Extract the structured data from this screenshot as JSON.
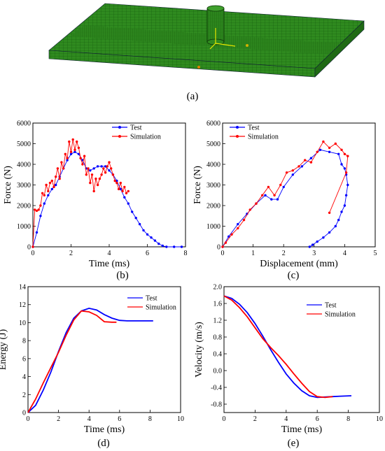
{
  "panels": [
    {
      "id": "a",
      "caption": "(a)"
    },
    {
      "id": "b",
      "caption": "(b)"
    },
    {
      "id": "c",
      "caption": "(c)"
    },
    {
      "id": "d",
      "caption": "(d)"
    },
    {
      "id": "e",
      "caption": "(e)"
    }
  ],
  "colors": {
    "test": "#0000ff",
    "simulation": "#ff0000",
    "mesh": "#2f8a1f"
  },
  "mesh_visual": {
    "kind": "finite-element plate mesh with cylindrical impactor",
    "icon": "fe-mesh-icon"
  },
  "chart_data": [
    {
      "panel": "b",
      "type": "line",
      "markers": true,
      "xlabel": "Time (ms)",
      "ylabel": "Force (N)",
      "xlim": [
        0,
        8
      ],
      "ylim": [
        0,
        6000
      ],
      "xticks": [
        0,
        2,
        4,
        6,
        8
      ],
      "yticks": [
        0,
        1000,
        2000,
        3000,
        4000,
        5000,
        6000
      ],
      "legend": "top-right",
      "series": [
        {
          "name": "Test",
          "color": "#0000ff",
          "x": [
            0,
            0.2,
            0.4,
            0.6,
            0.8,
            1.0,
            1.2,
            1.4,
            1.6,
            1.8,
            2.0,
            2.2,
            2.4,
            2.6,
            2.8,
            3.0,
            3.2,
            3.4,
            3.6,
            3.8,
            4.0,
            4.2,
            4.4,
            4.6,
            4.8,
            5.0,
            5.2,
            5.4,
            5.6,
            5.8,
            6.0,
            6.2,
            6.4,
            6.6,
            6.8,
            7.0,
            7.4,
            7.8
          ],
          "y": [
            0,
            700,
            1500,
            2100,
            2500,
            2800,
            3000,
            3400,
            3800,
            4200,
            4500,
            4600,
            4500,
            4200,
            3800,
            3700,
            3800,
            3900,
            3900,
            3900,
            3700,
            3500,
            3200,
            2800,
            2400,
            2100,
            1700,
            1400,
            1100,
            800,
            600,
            450,
            300,
            150,
            50,
            0,
            0,
            0
          ]
        },
        {
          "name": "Simulation",
          "color": "#ff0000",
          "x": [
            0,
            0.1,
            0.2,
            0.3,
            0.4,
            0.5,
            0.6,
            0.7,
            0.8,
            0.9,
            1.0,
            1.1,
            1.2,
            1.3,
            1.4,
            1.5,
            1.6,
            1.7,
            1.8,
            1.9,
            2.0,
            2.1,
            2.2,
            2.3,
            2.4,
            2.5,
            2.6,
            2.7,
            2.8,
            2.9,
            3.0,
            3.1,
            3.2,
            3.3,
            3.4,
            3.5,
            3.6,
            3.7,
            3.8,
            3.9,
            4.0,
            4.1,
            4.2,
            4.3,
            4.4,
            4.5,
            4.6,
            4.7,
            4.8,
            4.9,
            5.0
          ],
          "y": [
            0,
            1800,
            1750,
            1800,
            2000,
            2600,
            2500,
            3000,
            2700,
            3100,
            3200,
            2900,
            3400,
            3800,
            3300,
            4100,
            3800,
            4500,
            4300,
            5100,
            4600,
            5200,
            4700,
            5100,
            4800,
            4300,
            4000,
            4400,
            3500,
            3800,
            3100,
            3500,
            2700,
            3300,
            3000,
            3300,
            3500,
            3800,
            3600,
            3900,
            4100,
            3800,
            3500,
            3200,
            3100,
            2800,
            3100,
            2700,
            2900,
            2600,
            2700
          ]
        }
      ]
    },
    {
      "panel": "c",
      "type": "line",
      "markers": true,
      "xlabel": "Displacement (mm)",
      "ylabel": "Force (N)",
      "xlim": [
        0,
        5
      ],
      "ylim": [
        0,
        6000
      ],
      "xticks": [
        0,
        1,
        2,
        3,
        4,
        5
      ],
      "yticks": [
        0,
        1000,
        2000,
        3000,
        4000,
        5000,
        6000
      ],
      "legend": "top-center",
      "series": [
        {
          "name": "Test",
          "color": "#0000ff",
          "x": [
            0,
            0.2,
            0.5,
            0.8,
            1.1,
            1.4,
            1.6,
            1.8,
            2.0,
            2.3,
            2.6,
            2.9,
            3.2,
            3.5,
            3.8,
            3.9,
            4.0,
            4.05,
            4.1,
            4.05,
            4.0,
            3.9,
            3.8,
            3.7,
            3.5,
            3.3,
            3.1,
            2.95,
            2.85
          ],
          "y": [
            0,
            500,
            1100,
            1600,
            2100,
            2500,
            2300,
            2300,
            2900,
            3500,
            3900,
            4300,
            4700,
            4600,
            4500,
            4000,
            3800,
            3500,
            3000,
            2500,
            2000,
            1700,
            1300,
            1000,
            700,
            450,
            250,
            100,
            0
          ]
        },
        {
          "name": "Simulation",
          "color": "#ff0000",
          "x": [
            0,
            0.1,
            0.3,
            0.5,
            0.7,
            0.9,
            1.1,
            1.3,
            1.5,
            1.7,
            1.9,
            2.1,
            2.3,
            2.5,
            2.7,
            2.9,
            3.1,
            3.3,
            3.5,
            3.7,
            3.9,
            4.0,
            4.1,
            4.05,
            3.5
          ],
          "y": [
            0,
            200,
            600,
            900,
            1300,
            1800,
            2100,
            2500,
            2900,
            2500,
            3000,
            3600,
            3700,
            3900,
            4200,
            4100,
            4600,
            5100,
            4800,
            5000,
            4700,
            4500,
            4400,
            3600,
            1650
          ]
        }
      ]
    },
    {
      "panel": "d",
      "type": "line",
      "markers": false,
      "xlabel": "Time (ms)",
      "ylabel": "Energy (J)",
      "xlim": [
        0,
        10
      ],
      "ylim": [
        0,
        14
      ],
      "xticks": [
        0,
        2,
        4,
        6,
        8,
        10
      ],
      "yticks": [
        0,
        2,
        4,
        6,
        8,
        10,
        12,
        14
      ],
      "legend": "top-right",
      "series": [
        {
          "name": "Test",
          "color": "#0000ff",
          "x": [
            0,
            0.5,
            1.0,
            1.5,
            2.0,
            2.5,
            3.0,
            3.5,
            4.0,
            4.5,
            5.0,
            5.5,
            6.0,
            6.5,
            7.0,
            7.5,
            8.2
          ],
          "y": [
            0,
            0.8,
            2.5,
            4.5,
            6.8,
            8.9,
            10.5,
            11.3,
            11.6,
            11.4,
            10.9,
            10.5,
            10.25,
            10.2,
            10.2,
            10.2,
            10.2
          ]
        },
        {
          "name": "Simulation",
          "color": "#ff0000",
          "x": [
            0,
            0.5,
            1.0,
            1.5,
            2.0,
            2.5,
            3.0,
            3.5,
            4.0,
            4.5,
            5.0,
            5.5,
            5.8
          ],
          "y": [
            0,
            1.5,
            3.3,
            5.0,
            6.7,
            8.6,
            10.3,
            11.3,
            11.2,
            10.8,
            10.1,
            10.05,
            10.05
          ]
        }
      ]
    },
    {
      "panel": "e",
      "type": "line",
      "markers": false,
      "xlabel": "Time (ms)",
      "ylabel": "Velocity (m/s)",
      "xlim": [
        0,
        10
      ],
      "ylim": [
        -1.0,
        2.0
      ],
      "xticks": [
        0,
        2,
        4,
        6,
        8,
        10
      ],
      "yticks": [
        -0.8,
        -0.4,
        0.0,
        0.4,
        0.8,
        1.2,
        1.6,
        2.0
      ],
      "legend": "top-right",
      "series": [
        {
          "name": "Test",
          "color": "#0000ff",
          "x": [
            0,
            0.5,
            1.0,
            1.5,
            2.0,
            2.5,
            3.0,
            3.5,
            4.0,
            4.5,
            5.0,
            5.5,
            6.0,
            6.5,
            7.0,
            7.5,
            8.2
          ],
          "y": [
            1.78,
            1.72,
            1.58,
            1.38,
            1.12,
            0.82,
            0.5,
            0.2,
            -0.08,
            -0.3,
            -0.48,
            -0.6,
            -0.64,
            -0.63,
            -0.62,
            -0.61,
            -0.6
          ]
        },
        {
          "name": "Simulation",
          "color": "#ff0000",
          "x": [
            0,
            0.5,
            1.0,
            1.5,
            2.0,
            2.5,
            3.0,
            3.5,
            4.0,
            4.5,
            5.0,
            5.5,
            6.0,
            6.5,
            7.0
          ],
          "y": [
            1.78,
            1.68,
            1.5,
            1.28,
            1.02,
            0.76,
            0.55,
            0.36,
            0.15,
            -0.08,
            -0.3,
            -0.5,
            -0.62,
            -0.64,
            -0.62
          ]
        }
      ]
    }
  ]
}
